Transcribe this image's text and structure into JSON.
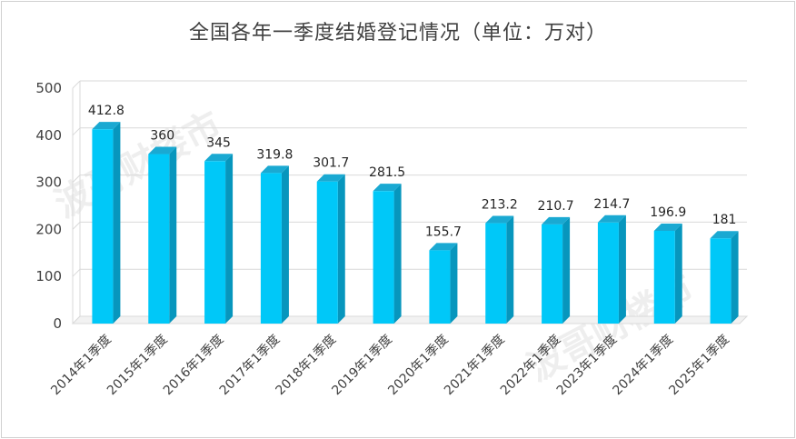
{
  "chart_data": {
    "type": "bar",
    "title": "全国各年一季度结婚登记情况（单位：万对）",
    "categories": [
      "2014年1季度",
      "2015年1季度",
      "2016年1季度",
      "2017年1季度",
      "2018年1季度",
      "2019年1季度",
      "2020年1季度",
      "2021年1季度",
      "2022年1季度",
      "2023年1季度",
      "2024年1季度",
      "2025年1季度"
    ],
    "values": [
      412.8,
      360,
      345,
      319.8,
      301.7,
      281.5,
      155.7,
      213.2,
      210.7,
      214.7,
      196.9,
      181
    ],
    "data_labels": [
      "412.8",
      "360",
      "345",
      "319.8",
      "301.7",
      "281.5",
      "155.7",
      "213.2",
      "210.7",
      "214.7",
      "196.9",
      "181"
    ],
    "ylim": [
      0,
      500
    ],
    "yticks": [
      0,
      100,
      200,
      300,
      400,
      500
    ],
    "grid": true,
    "legend": "none",
    "colors": {
      "bar_front": "#00c8f8",
      "bar_side": "#0796bd",
      "bar_top": "#1aa9d2",
      "grid": "#d9d9d9"
    },
    "watermark": "波哥财楼市"
  }
}
